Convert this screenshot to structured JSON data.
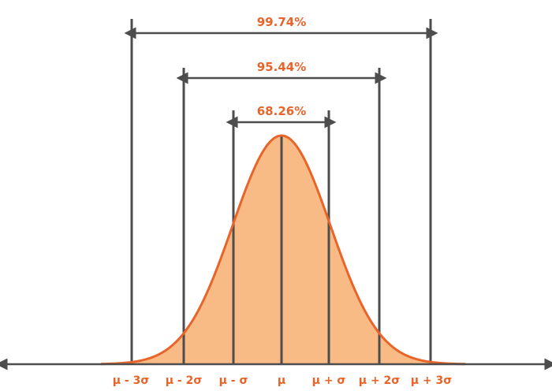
{
  "colors": {
    "accent": "#e8642a",
    "fill": "#f9bb85",
    "line": "#4d4d4d",
    "label": "#e8642a"
  },
  "intervals": {
    "one_sigma": "68.26%",
    "two_sigma": "95.44%",
    "three_sigma": "99.74%"
  },
  "axis": {
    "ticks": [
      "μ - 3σ",
      "μ - 2σ",
      "μ - σ",
      "μ",
      "μ + σ",
      "μ + 2σ",
      "μ + 3σ"
    ]
  }
}
